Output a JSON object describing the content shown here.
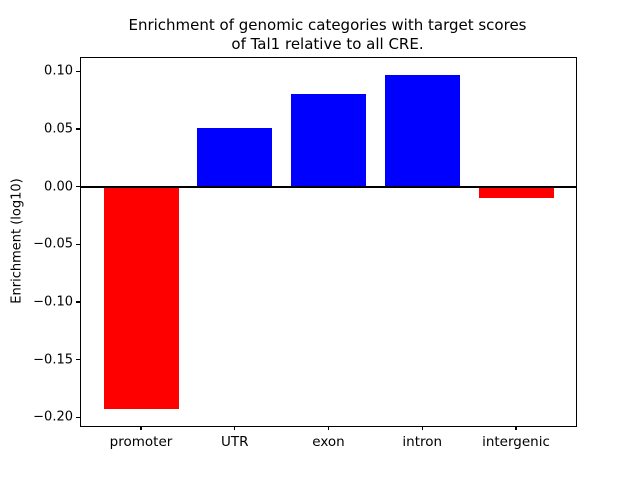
{
  "chart_data": {
    "type": "bar",
    "title_lines": [
      "Enrichment of genomic categories with target scores",
      "of Tal1 relative to all CRE."
    ],
    "ylabel": "Enrichment (log10)",
    "xlabel": "",
    "categories": [
      "promoter",
      "UTR",
      "exon",
      "intron",
      "intergenic"
    ],
    "values": [
      -0.193,
      0.051,
      0.08,
      0.097,
      -0.0095
    ],
    "bar_colors": [
      "#ff0000",
      "#0000ff",
      "#0000ff",
      "#0000ff",
      "#ff0000"
    ],
    "positive_color": "#0000ff",
    "negative_color": "#ff0000",
    "yticks": [
      0.1,
      0.05,
      0.0,
      -0.05,
      -0.1,
      -0.15,
      -0.2
    ],
    "ytick_labels": [
      "0.10",
      "0.05",
      "0.00",
      "−0.05",
      "−0.10",
      "−0.15",
      "−0.20"
    ],
    "ylim": [
      -0.2075,
      0.1115
    ],
    "bar_width_frac": 0.8,
    "grid": false,
    "legend_position": "none",
    "zero_line": true,
    "background_color": "#ffffff",
    "axis_color": "#000000"
  }
}
